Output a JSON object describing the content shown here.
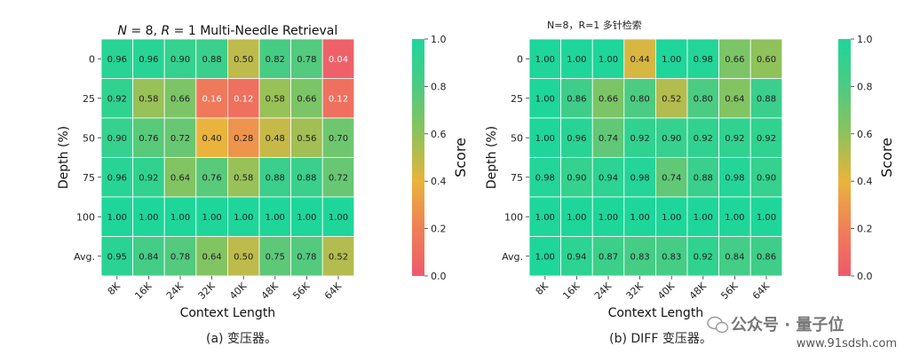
{
  "chart_data": [
    {
      "type": "heatmap",
      "title_parts": [
        "N",
        " = 8, ",
        "R",
        " = 1 Multi-Needle Retrieval"
      ],
      "title_top": "",
      "xlabel": "Context Length",
      "ylabel": "Depth (%)",
      "caption": "(a) 变压器。",
      "colorbar_label": "Score",
      "x_categories": [
        "8K",
        "16K",
        "24K",
        "32K",
        "40K",
        "48K",
        "56K",
        "64K"
      ],
      "y_categories": [
        "0",
        "25",
        "50",
        "75",
        "100",
        "Avg."
      ],
      "values": [
        [
          "0.96",
          "0.96",
          "0.90",
          "0.88",
          "0.50",
          "0.82",
          "0.78",
          "0.04"
        ],
        [
          "0.92",
          "0.58",
          "0.66",
          "0.16",
          "0.12",
          "0.58",
          "0.66",
          "0.12"
        ],
        [
          "0.90",
          "0.76",
          "0.72",
          "0.40",
          "0.28",
          "0.48",
          "0.56",
          "0.70"
        ],
        [
          "0.96",
          "0.92",
          "0.64",
          "0.76",
          "0.58",
          "0.88",
          "0.88",
          "0.72"
        ],
        [
          "1.00",
          "1.00",
          "1.00",
          "1.00",
          "1.00",
          "1.00",
          "1.00",
          "1.00"
        ],
        [
          "0.95",
          "0.84",
          "0.78",
          "0.64",
          "0.50",
          "0.75",
          "0.78",
          "0.52"
        ]
      ],
      "colorbar_ticks": [
        "0.0",
        "0.2",
        "0.4",
        "0.6",
        "0.8",
        "1.0"
      ],
      "vmin": 0,
      "vmax": 1
    },
    {
      "type": "heatmap",
      "title_parts": [],
      "title_top": "N=8，R=1 多针检索",
      "xlabel": "Context Length",
      "ylabel": "Depth (%)",
      "caption": "(b) DIFF 变压器。",
      "colorbar_label": "Score",
      "x_categories": [
        "8K",
        "16K",
        "24K",
        "32K",
        "40K",
        "48K",
        "56K",
        "64K"
      ],
      "y_categories": [
        "0",
        "25",
        "50",
        "75",
        "100",
        "Avg."
      ],
      "values": [
        [
          "1.00",
          "1.00",
          "1.00",
          "0.44",
          "1.00",
          "0.98",
          "0.66",
          "0.60"
        ],
        [
          "1.00",
          "0.86",
          "0.66",
          "0.80",
          "0.52",
          "0.80",
          "0.64",
          "0.88"
        ],
        [
          "1.00",
          "0.96",
          "0.74",
          "0.92",
          "0.90",
          "0.92",
          "0.92",
          "0.92"
        ],
        [
          "0.98",
          "0.90",
          "0.94",
          "0.98",
          "0.74",
          "0.88",
          "0.98",
          "0.90"
        ],
        [
          "1.00",
          "1.00",
          "1.00",
          "1.00",
          "1.00",
          "1.00",
          "1.00",
          "1.00"
        ],
        [
          "1.00",
          "0.94",
          "0.87",
          "0.83",
          "0.83",
          "0.92",
          "0.84",
          "0.86"
        ]
      ],
      "colorbar_ticks": [
        "0.0",
        "0.2",
        "0.4",
        "0.6",
        "0.8",
        "1.0"
      ],
      "vmin": 0,
      "vmax": 1
    }
  ],
  "watermark": "公众号 · 量子位",
  "watermark_url": "www.91sdsh.com",
  "colormap": [
    "#ee5a6c",
    "#f07f57",
    "#eab33c",
    "#8fc25a",
    "#4ccb82",
    "#1ed69a"
  ]
}
